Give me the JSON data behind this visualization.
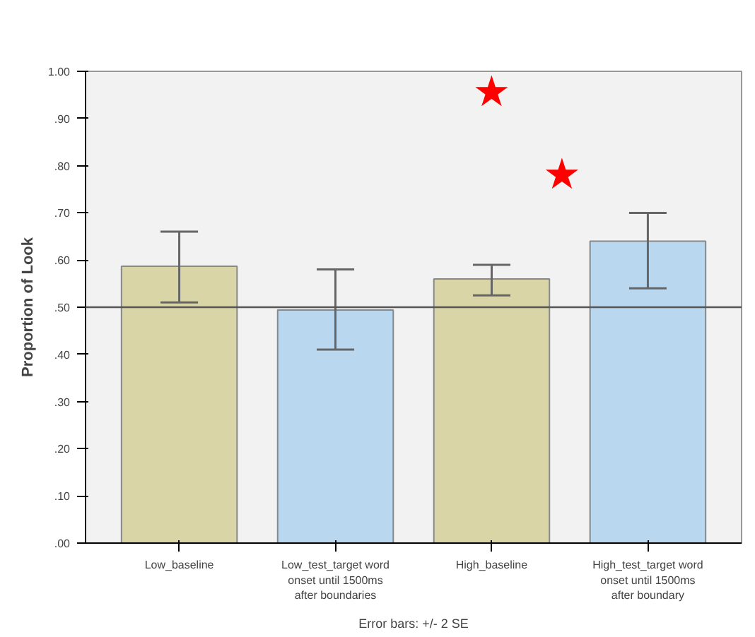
{
  "chart_data": {
    "type": "bar",
    "ylabel": "Proportion of Look",
    "categories": [
      "Low_baseline",
      "Low_test_target word\nonset until 1500ms\nafter boundaries",
      "High_baseline",
      "High_test_target word\nonset until 1500ms\nafter boundary"
    ],
    "values": [
      0.587,
      0.494,
      0.56,
      0.64
    ],
    "colors": [
      "#d9d5a6",
      "#b9d8f0",
      "#d9d5a6",
      "#b9d8f0"
    ],
    "errors": [
      [
        0.51,
        0.66
      ],
      [
        0.41,
        0.58
      ],
      [
        0.525,
        0.59
      ],
      [
        0.54,
        0.7
      ]
    ],
    "ylim": [
      0,
      1.0
    ],
    "yticks": [
      {
        "value": 0,
        "label": ".00"
      },
      {
        "value": 0.1,
        "label": ".10"
      },
      {
        "value": 0.2,
        "label": ".20"
      },
      {
        "value": 0.3,
        "label": ".30"
      },
      {
        "value": 0.4,
        "label": ".40"
      },
      {
        "value": 0.5,
        "label": ".50"
      },
      {
        "value": 0.6,
        "label": ".60"
      },
      {
        "value": 0.7,
        "label": ".70"
      },
      {
        "value": 0.8,
        "label": ".80"
      },
      {
        "value": 0.9,
        "label": ".90"
      },
      {
        "value": 1.0,
        "label": "1.00"
      }
    ],
    "ref_lines": [
      {
        "axis": "y",
        "value": 0.5,
        "color": "#555555"
      }
    ],
    "annotations": [
      "Error bars: +/- 2 SE",
      "★",
      "★"
    ],
    "grid": false
  }
}
